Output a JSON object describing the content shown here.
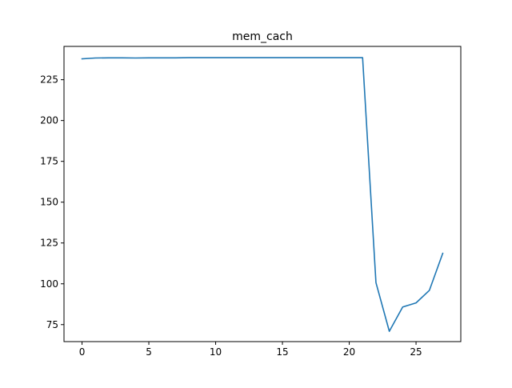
{
  "chart_data": {
    "type": "line",
    "title": "mem_cach",
    "xlabel": "",
    "ylabel": "",
    "xlim": [
      -1.35,
      28.35
    ],
    "ylim": [
      64.6,
      245.4
    ],
    "xticks": [
      0,
      5,
      10,
      15,
      20,
      25
    ],
    "yticks": [
      75,
      100,
      125,
      150,
      175,
      200,
      225
    ],
    "grid": false,
    "line_color": "#1f77b4",
    "series": [
      {
        "x": [
          0,
          1,
          2,
          3,
          4,
          5,
          6,
          7,
          8,
          9,
          10,
          11,
          12,
          13,
          14,
          15,
          16,
          17,
          18,
          19,
          20,
          21,
          22,
          23,
          24,
          25,
          26,
          27
        ],
        "values": [
          237.8,
          238.3,
          238.4,
          238.4,
          238.3,
          238.4,
          238.4,
          238.4,
          238.5,
          238.5,
          238.5,
          238.5,
          238.5,
          238.5,
          238.5,
          238.5,
          238.5,
          238.5,
          238.5,
          238.5,
          238.5,
          238.5,
          100.7,
          70.9,
          85.8,
          88.3,
          96.0,
          118.7
        ]
      }
    ]
  }
}
